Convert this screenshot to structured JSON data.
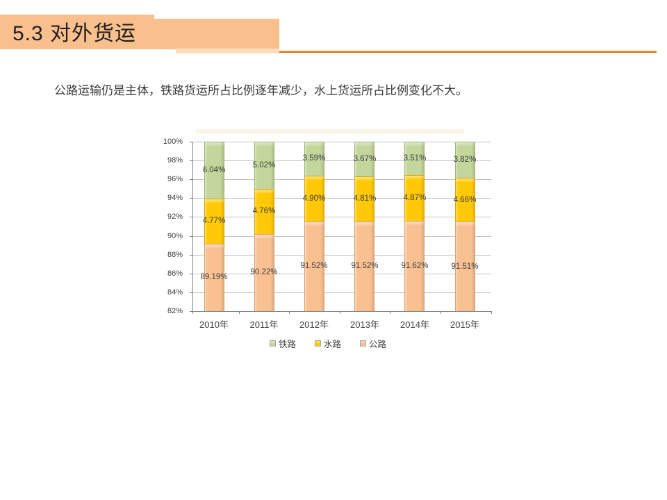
{
  "slide": {
    "title": "5.3 对外货运",
    "intro": "公路运输仍是主体，铁路货运所占比例逐年减少，水上货运所占比例变化不大。"
  },
  "colors": {
    "header_band": "#F9C08D",
    "header_band_shadow": "#FBDCBD",
    "header_rule": "#D97A20",
    "axis": "#808080",
    "gridline": "#C3C3C3",
    "label_text": "#3D3D3D",
    "series": {
      "铁路": {
        "fill": "#C3D69B",
        "cap": "#DEEAC5",
        "border": "#9DB56F"
      },
      "水路": {
        "fill": "#FFC907",
        "cap": "#FFE47A",
        "border": "#D9A400"
      },
      "公路": {
        "fill": "#F9C091",
        "cap": "#FCDCBC",
        "border": "#D9A06B"
      }
    }
  },
  "chart_data": {
    "type": "bar",
    "stacked": true,
    "title": "",
    "xlabel": "",
    "ylabel": "",
    "categories": [
      "2010年",
      "2011年",
      "2012年",
      "2013年",
      "2014年",
      "2015年"
    ],
    "series": [
      {
        "name": "公路",
        "values": [
          89.19,
          90.22,
          91.52,
          91.52,
          91.62,
          91.51
        ]
      },
      {
        "name": "水路",
        "values": [
          4.77,
          4.76,
          4.9,
          4.81,
          4.87,
          4.66
        ]
      },
      {
        "name": "铁路",
        "values": [
          6.04,
          5.02,
          3.59,
          3.67,
          3.51,
          3.82
        ]
      }
    ],
    "data_labels": true,
    "label_decimals": 2,
    "value_suffix": "%",
    "ylim": [
      82,
      100
    ],
    "ytick_step": 2,
    "ytick_labels": [
      "82%",
      "84%",
      "86%",
      "88%",
      "90%",
      "92%",
      "94%",
      "96%",
      "98%",
      "100%"
    ],
    "grid": true,
    "legend": [
      "铁路",
      "水路",
      "公路"
    ],
    "legend_position": "bottom"
  }
}
